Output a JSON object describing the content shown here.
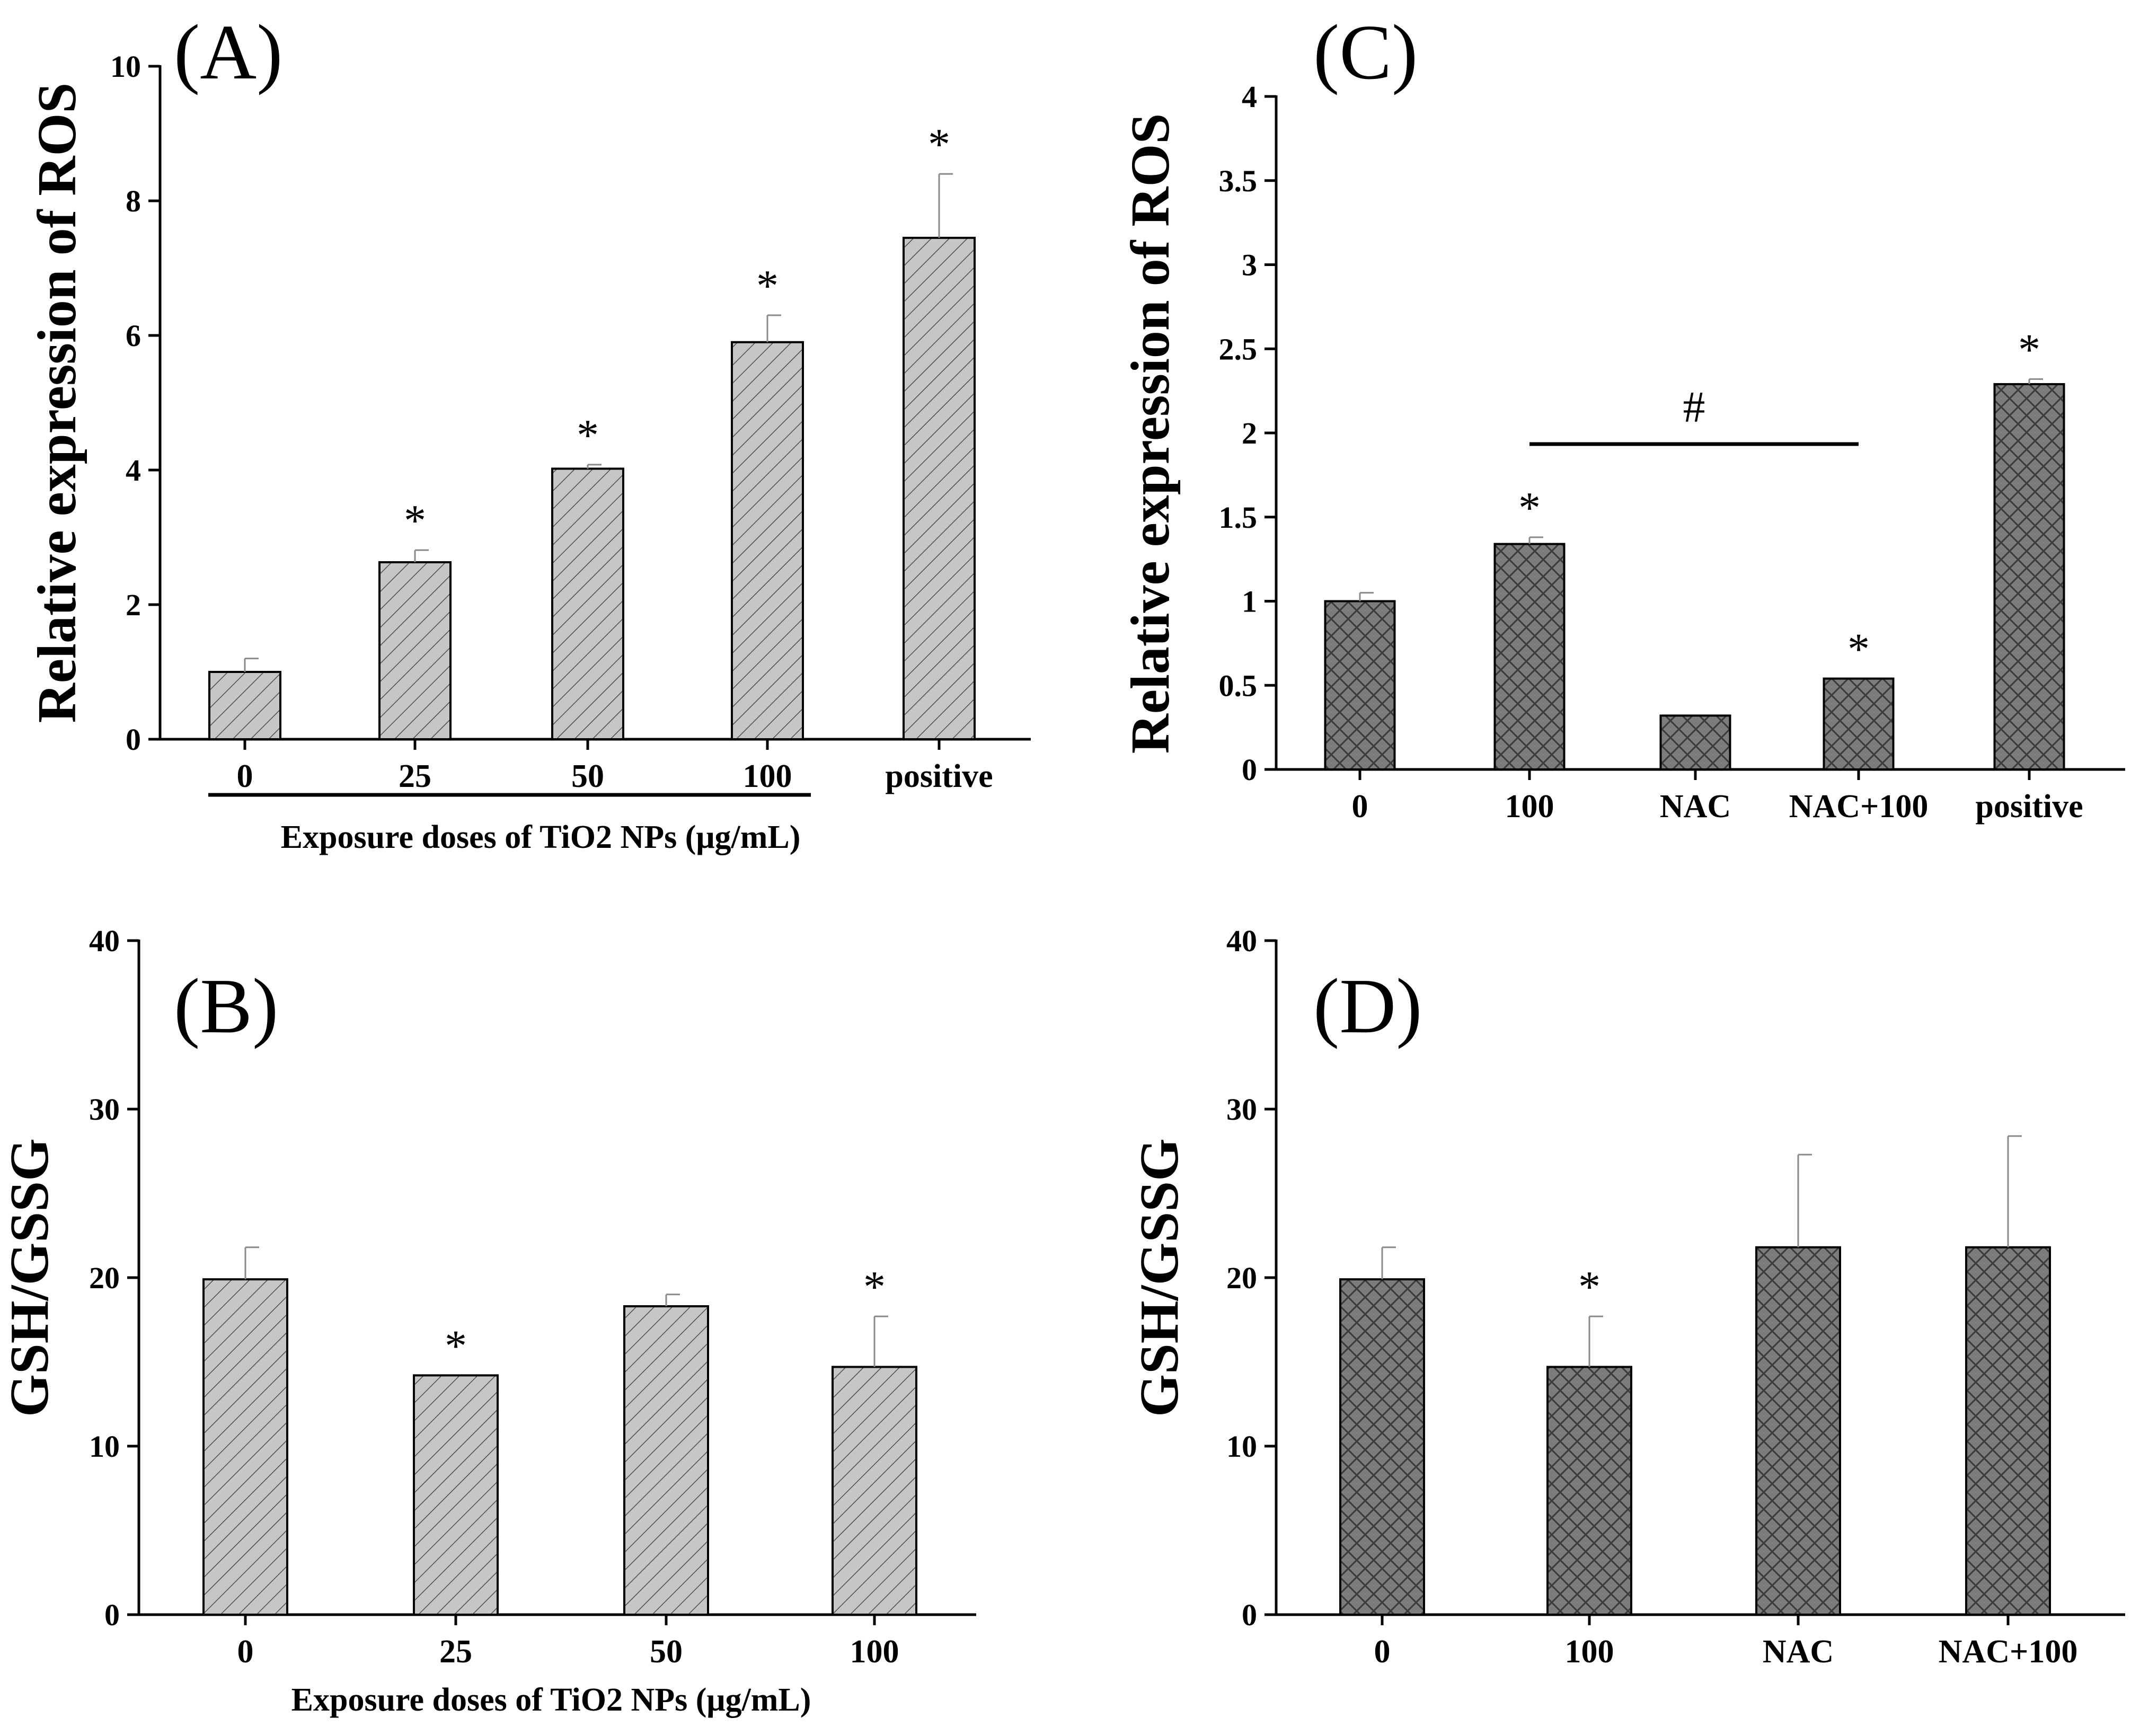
{
  "colors": {
    "bar_light": "#c6c6c6",
    "hatch_light": "#4d4d4d",
    "bar_dark": "#7c7c7c",
    "hatch_dark": "#3a3a3a",
    "axis": "#000000",
    "error_bar": "#8a8a8a"
  },
  "chart_data": [
    {
      "panel": "(A)",
      "type": "bar",
      "ylabel": "Relative expression of ROS",
      "xlabel": "Exposure doses of TiO2 NPs (μg/mL)",
      "categories": [
        "0",
        "25",
        "50",
        "100",
        "positive"
      ],
      "values": [
        1.0,
        2.63,
        4.02,
        5.9,
        7.45
      ],
      "errors": [
        0.2,
        0.18,
        0.06,
        0.4,
        0.95
      ],
      "significance": [
        "",
        "*",
        "*",
        "*",
        "*"
      ],
      "ylim": [
        0,
        10
      ],
      "yticks": [
        "0",
        "2",
        "4",
        "6",
        "8",
        "10"
      ],
      "bracket_under_categories": [
        "0",
        "100"
      ],
      "hatch": "diagonal",
      "grid": false
    },
    {
      "panel": "(B)",
      "type": "bar",
      "ylabel": "GSH/GSSG",
      "xlabel": "Exposure doses of TiO2 NPs (μg/mL)",
      "categories": [
        "0",
        "25",
        "50",
        "100"
      ],
      "values": [
        19.9,
        14.2,
        18.3,
        14.7
      ],
      "errors": [
        1.9,
        0.0,
        0.7,
        3.0
      ],
      "significance": [
        "",
        "*",
        "",
        "*"
      ],
      "ylim": [
        0,
        40
      ],
      "yticks": [
        "0",
        "10",
        "20",
        "30",
        "40"
      ],
      "hatch": "diagonal",
      "grid": false
    },
    {
      "panel": "(C)",
      "type": "bar",
      "ylabel": "Relative expression of ROS",
      "xlabel": "",
      "categories": [
        "0",
        "100",
        "NAC",
        "NAC+100",
        "positive"
      ],
      "values": [
        1.0,
        1.34,
        0.32,
        0.54,
        2.29
      ],
      "errors": [
        0.05,
        0.04,
        0.0,
        0.0,
        0.03
      ],
      "significance": [
        "",
        "*",
        "",
        "*",
        "*"
      ],
      "comparison": {
        "from": "100",
        "to": "NAC+100",
        "mark": "#"
      },
      "ylim": [
        0,
        4
      ],
      "yticks": [
        "0",
        "0.5",
        "1",
        "1.5",
        "2",
        "2.5",
        "3",
        "3.5",
        "4"
      ],
      "hatch": "crosshatch",
      "grid": false
    },
    {
      "panel": "(D)",
      "type": "bar",
      "ylabel": "GSH/GSSG",
      "xlabel": "",
      "categories": [
        "0",
        "100",
        "NAC",
        "NAC+100"
      ],
      "values": [
        19.9,
        14.7,
        21.8,
        21.8
      ],
      "errors": [
        1.9,
        3.0,
        5.5,
        6.6
      ],
      "significance": [
        "",
        "*",
        "",
        ""
      ],
      "ylim": [
        0,
        40
      ],
      "yticks": [
        "0",
        "10",
        "20",
        "30",
        "40"
      ],
      "hatch": "crosshatch",
      "grid": false
    }
  ]
}
